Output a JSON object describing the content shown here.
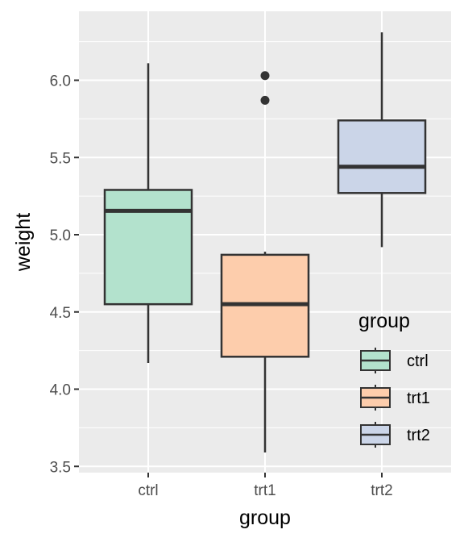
{
  "chart_data": {
    "type": "boxplot",
    "xlabel": "group",
    "ylabel": "weight",
    "ylim": [
      3.47,
      6.43
    ],
    "yticks": [
      "3.5",
      "4.0",
      "4.5",
      "5.0",
      "5.5",
      "6.0"
    ],
    "ytick_values": [
      3.5,
      4.0,
      4.5,
      5.0,
      5.5,
      6.0
    ],
    "categories": [
      "ctrl",
      "trt1",
      "trt2"
    ],
    "boxes": [
      {
        "group": "ctrl",
        "whisker_low": 4.17,
        "q1": 4.55,
        "median": 5.155,
        "q3": 5.29,
        "whisker_high": 6.11,
        "outliers": [],
        "fill": "#b3e2cd"
      },
      {
        "group": "trt1",
        "whisker_low": 3.59,
        "q1": 4.21,
        "median": 4.55,
        "q3": 4.87,
        "whisker_high": 4.89,
        "outliers": [
          5.87,
          6.03
        ],
        "fill": "#fdcdac"
      },
      {
        "group": "trt2",
        "whisker_low": 4.92,
        "q1": 5.27,
        "median": 5.44,
        "q3": 5.74,
        "whisker_high": 6.31,
        "outliers": [],
        "fill": "#cbd5e8"
      }
    ],
    "legend": {
      "title": "group",
      "position": "inside-bottom-right",
      "entries": [
        {
          "label": "ctrl",
          "fill": "#b3e2cd"
        },
        {
          "label": "trt1",
          "fill": "#fdcdac"
        },
        {
          "label": "trt2",
          "fill": "#cbd5e8"
        }
      ]
    },
    "grid": true,
    "panel_background": "#ebebeb",
    "outline_color": "#333333"
  }
}
